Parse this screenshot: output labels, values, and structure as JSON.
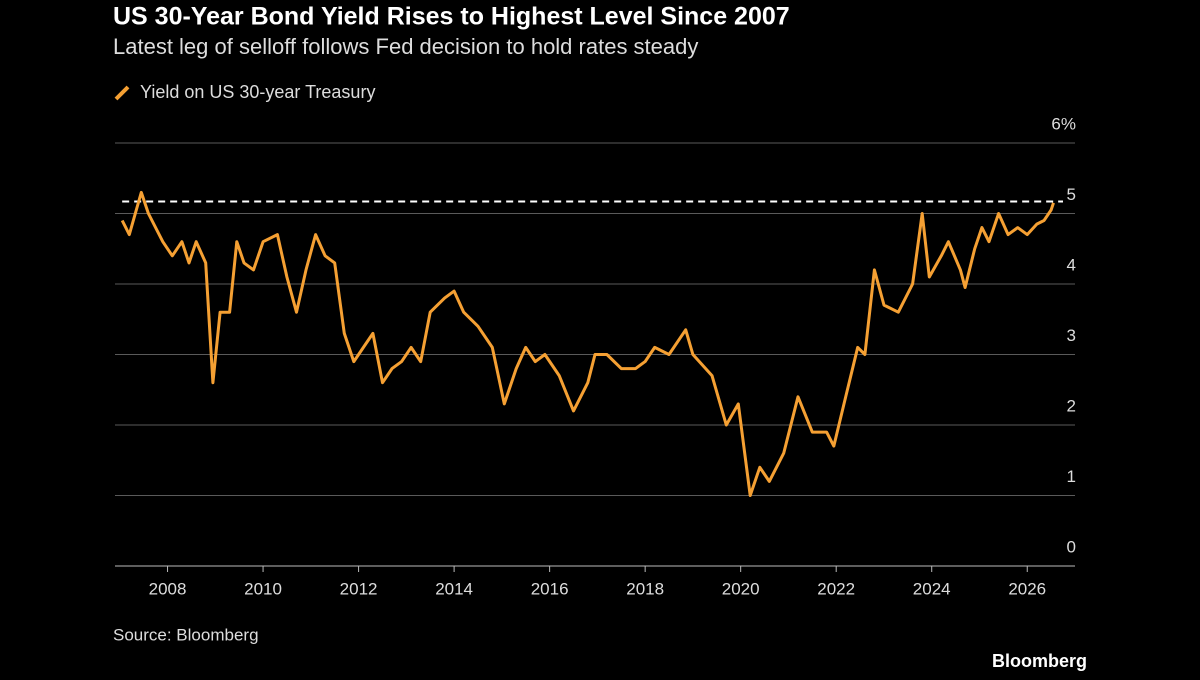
{
  "chart_data": {
    "type": "line",
    "title": "US 30-Year Bond Yield Rises to Highest Level Since 2007",
    "subtitle": "Latest leg of selloff follows Fed decision to hold rates steady",
    "source": "Source: Bloomberg",
    "brand": "Bloomberg",
    "x": [
      2007.05,
      2007.2,
      2007.45,
      2007.6,
      2007.9,
      2008.1,
      2008.3,
      2008.45,
      2008.6,
      2008.8,
      2008.95,
      2009.1,
      2009.3,
      2009.45,
      2009.6,
      2009.8,
      2010.0,
      2010.3,
      2010.5,
      2010.7,
      2010.9,
      2011.1,
      2011.3,
      2011.5,
      2011.7,
      2011.9,
      2012.1,
      2012.3,
      2012.5,
      2012.7,
      2012.9,
      2013.1,
      2013.3,
      2013.5,
      2013.8,
      2014.0,
      2014.2,
      2014.5,
      2014.8,
      2015.05,
      2015.3,
      2015.5,
      2015.7,
      2015.9,
      2016.2,
      2016.5,
      2016.8,
      2016.95,
      2017.2,
      2017.5,
      2017.8,
      2018.0,
      2018.2,
      2018.5,
      2018.85,
      2019.0,
      2019.4,
      2019.7,
      2019.95,
      2020.2,
      2020.4,
      2020.6,
      2020.9,
      2021.2,
      2021.5,
      2021.8,
      2021.95,
      2022.2,
      2022.45,
      2022.6,
      2022.8,
      2023.0,
      2023.3,
      2023.6,
      2023.8,
      2023.95,
      2024.2,
      2024.35,
      2024.6,
      2024.7,
      2024.9,
      2025.05,
      2025.2,
      2025.4,
      2025.6,
      2025.8,
      2026.0,
      2026.2,
      2026.35,
      2026.5,
      2026.55
    ],
    "series": [
      {
        "name": "Yield on US 30-year Treasury",
        "color": "#f5a033",
        "values": [
          4.9,
          4.7,
          5.3,
          5.0,
          4.6,
          4.4,
          4.6,
          4.3,
          4.6,
          4.3,
          2.6,
          3.6,
          3.6,
          4.6,
          4.3,
          4.2,
          4.6,
          4.7,
          4.1,
          3.6,
          4.2,
          4.7,
          4.4,
          4.3,
          3.3,
          2.9,
          3.1,
          3.3,
          2.6,
          2.8,
          2.9,
          3.1,
          2.9,
          3.6,
          3.8,
          3.9,
          3.6,
          3.4,
          3.1,
          2.3,
          2.8,
          3.1,
          2.9,
          3.0,
          2.7,
          2.2,
          2.6,
          3.0,
          3.0,
          2.8,
          2.8,
          2.9,
          3.1,
          3.0,
          3.35,
          3.0,
          2.7,
          2.0,
          2.3,
          1.0,
          1.4,
          1.2,
          1.6,
          2.4,
          1.9,
          1.9,
          1.7,
          2.4,
          3.1,
          3.0,
          4.2,
          3.7,
          3.6,
          4.0,
          5.0,
          4.1,
          4.4,
          4.6,
          4.2,
          3.95,
          4.5,
          4.8,
          4.6,
          5.0,
          4.7,
          4.8,
          4.7,
          4.85,
          4.9,
          5.05,
          5.15
        ]
      }
    ],
    "reference_line": 5.17,
    "xlim": [
      2006.9,
      2027.0
    ],
    "xticks": [
      2008,
      2010,
      2012,
      2014,
      2016,
      2018,
      2020,
      2022,
      2024,
      2026
    ],
    "ylim": [
      0,
      6
    ],
    "yticks": [
      0,
      1,
      2,
      3,
      4,
      5,
      {
        "value": 6,
        "label": "6%"
      }
    ],
    "grid": true
  }
}
